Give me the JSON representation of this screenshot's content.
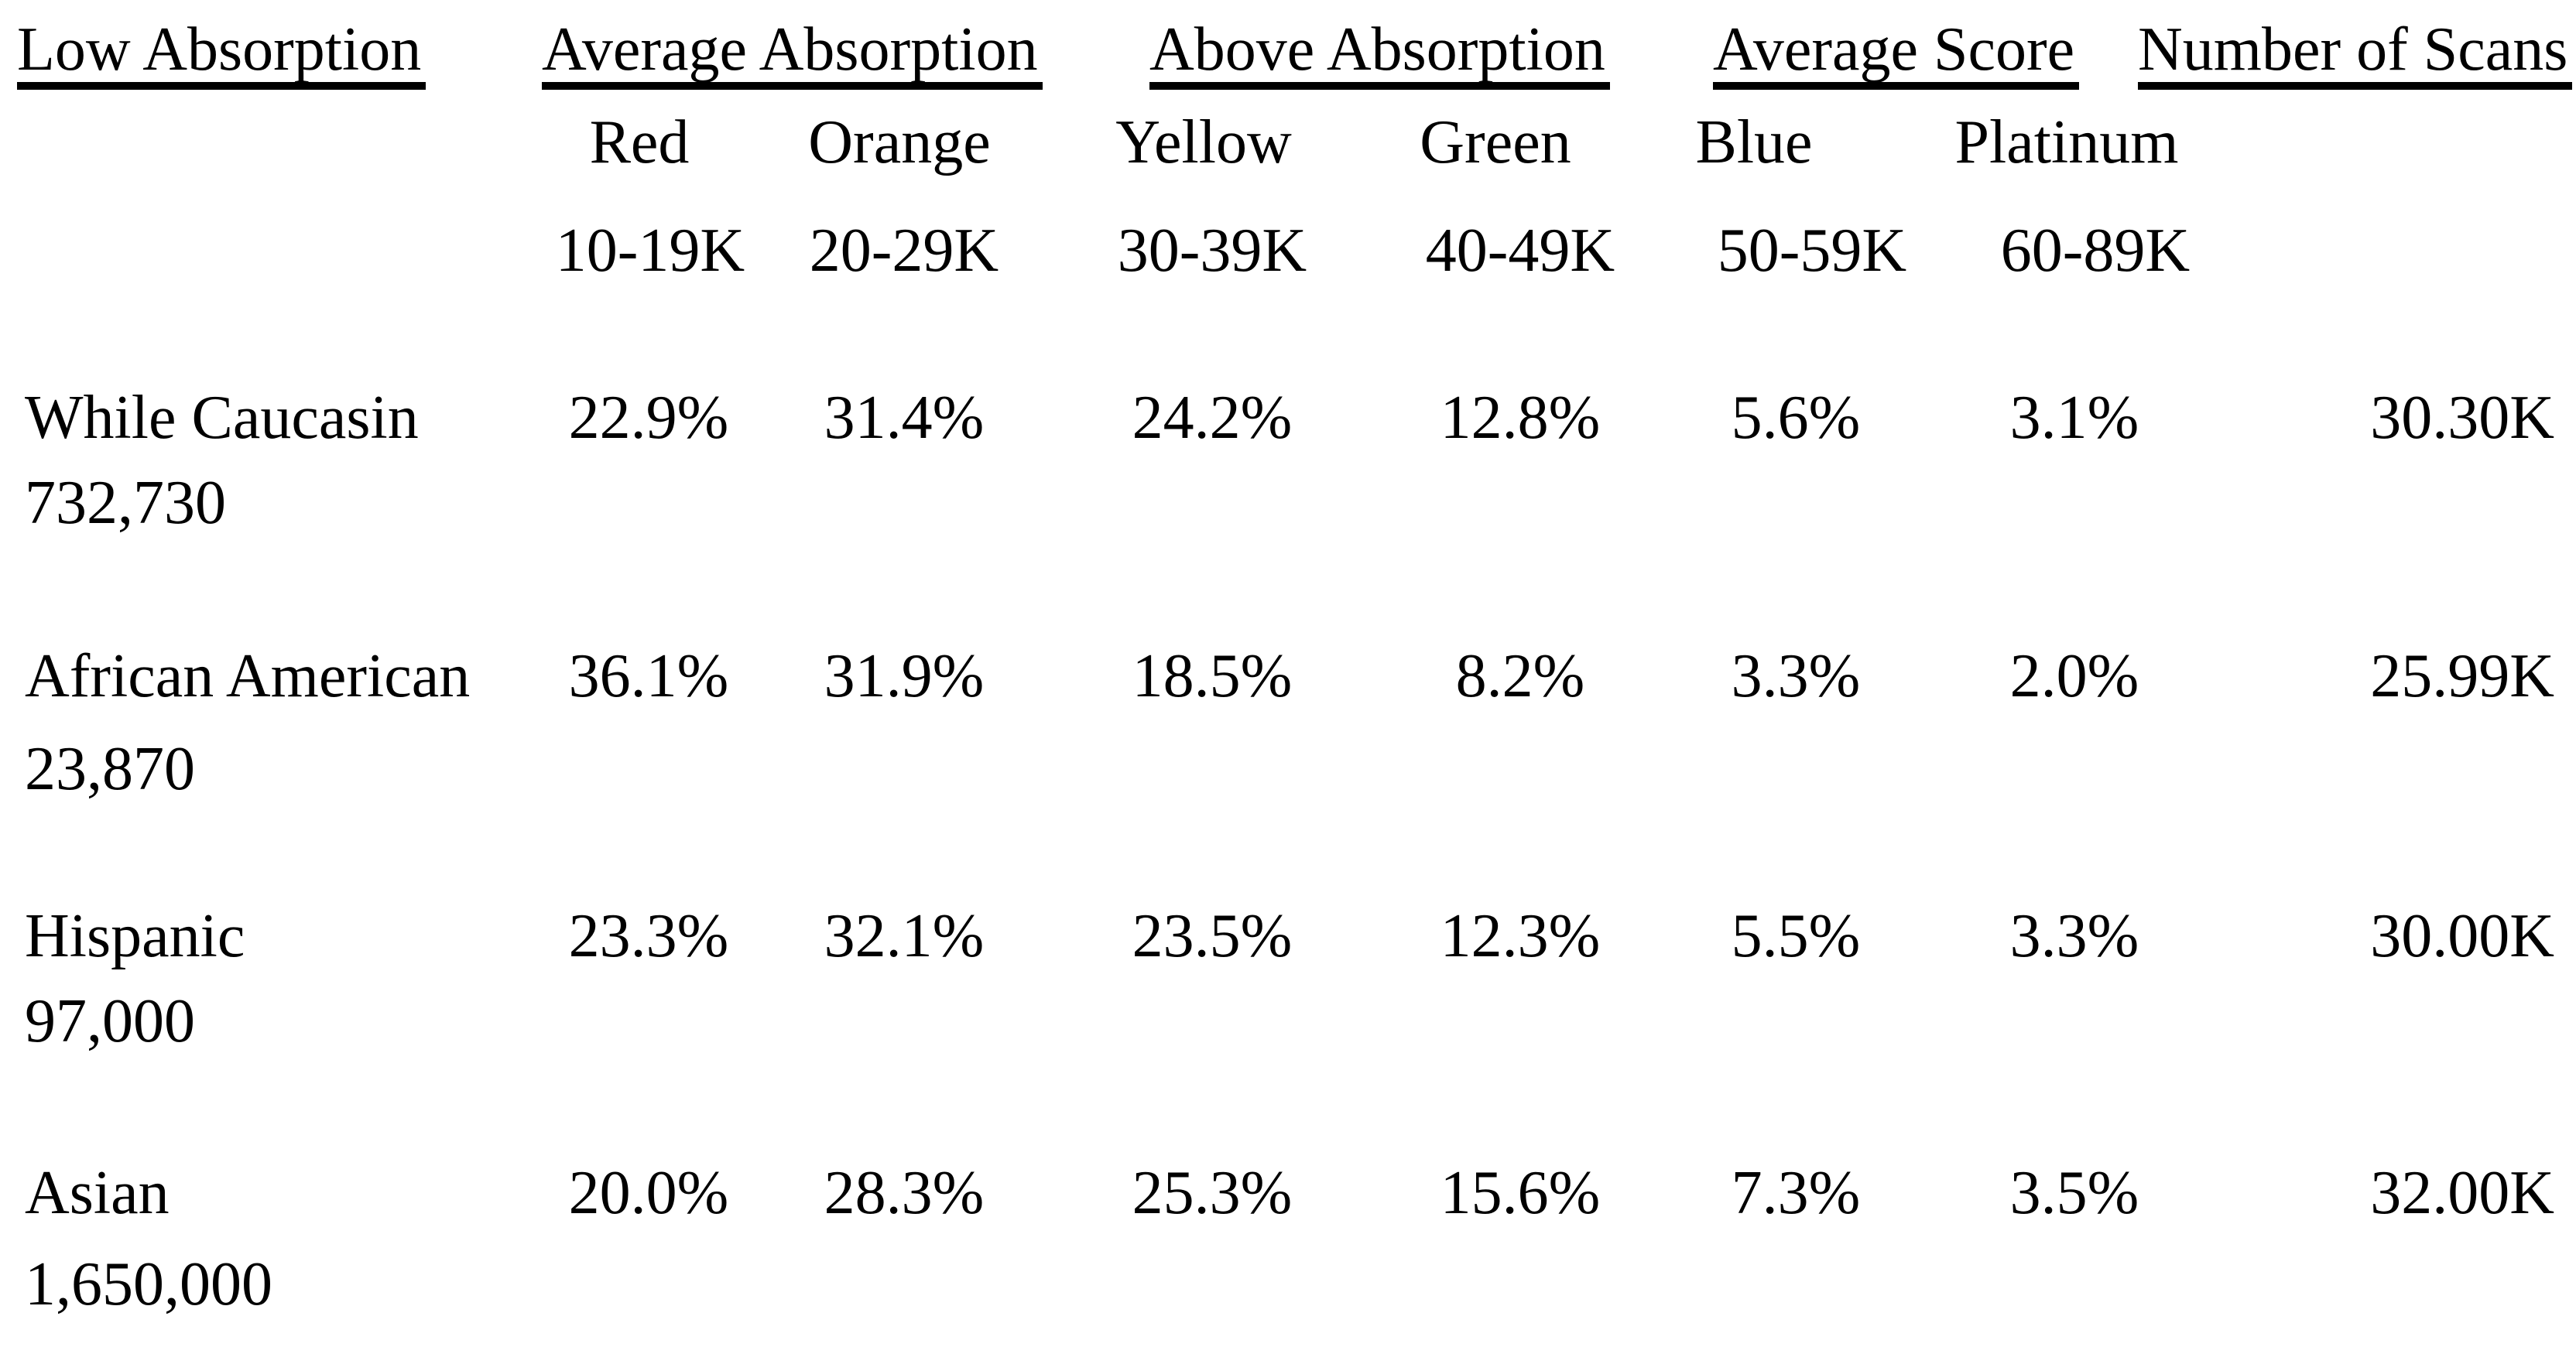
{
  "page": {
    "background_color": "#ffffff",
    "text_color": "#000000"
  },
  "table": {
    "section_headers": [
      "Low Absorption",
      "Average Absorption",
      "Above Absorption",
      "Average Score",
      "Number of Scans"
    ],
    "color_tiers": [
      "Red",
      "Orange",
      "Yellow",
      "Green",
      "Blue",
      "Platinum"
    ],
    "score_ranges": [
      "10-19K",
      "20-29K",
      "30-39K",
      "40-49K",
      "50-59K",
      "60-89K"
    ],
    "rows": [
      {
        "group": "While Caucasin",
        "population": "732,730",
        "values": [
          "22.9%",
          "31.4%",
          "24.2%",
          "12.8%",
          "5.6%",
          "3.1%"
        ],
        "scans": "30.30K"
      },
      {
        "group": "African American",
        "population": "23,870",
        "values": [
          "36.1%",
          "31.9%",
          "18.5%",
          "8.2%",
          "3.3%",
          "2.0%"
        ],
        "scans": "25.99K"
      },
      {
        "group": "Hispanic",
        "population": "97,000",
        "values": [
          "23.3%",
          "32.1%",
          "23.5%",
          "12.3%",
          "5.5%",
          "3.3%"
        ],
        "scans": "30.00K"
      },
      {
        "group": "Asian",
        "population": "1,650,000",
        "values": [
          "20.0%",
          "28.3%",
          "25.3%",
          "15.6%",
          "7.3%",
          "3.5%"
        ],
        "scans": "32.00K"
      }
    ]
  }
}
